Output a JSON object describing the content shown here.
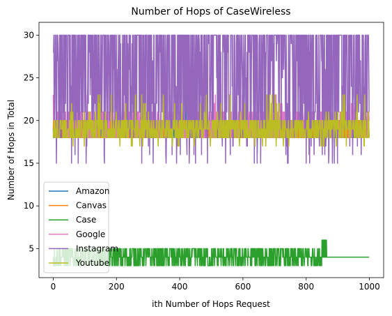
{
  "chart_data": {
    "type": "line",
    "title": "Number of Hops of CaseWireless",
    "xlabel": "ith Number of Hops Request",
    "ylabel": "Number of Hops in Total",
    "xlim": [
      -45,
      1045
    ],
    "ylim": [
      1.6,
      31.5
    ],
    "xticks": [
      0,
      200,
      400,
      600,
      800,
      1000
    ],
    "yticks": [
      5,
      10,
      15,
      20,
      25,
      30
    ],
    "grid": false,
    "legend_position": "lower-left",
    "n_points": 1000,
    "series": [
      {
        "name": "Amazon",
        "color": "#1f77b4",
        "description": "fluctuates 18-20, spike to 29-30 near i=420, dip to 16 near i=645",
        "baseline": [
          18,
          20
        ],
        "spikes": [
          {
            "x": 420,
            "y": 30
          },
          {
            "x": 422,
            "y": 29
          },
          {
            "x": 645,
            "y": 16
          }
        ]
      },
      {
        "name": "Canvas",
        "color": "#ff7f0e",
        "description": "fluctuates 18-20",
        "baseline": [
          18,
          20
        ],
        "spikes": []
      },
      {
        "name": "Case",
        "color": "#2ca02c",
        "description": "fluctuates 3-5 until ~850, 6 near 850-860, then constant 4",
        "segments": [
          {
            "x_start": 0,
            "x_end": 850,
            "min": 3,
            "max": 5
          },
          {
            "x_start": 850,
            "x_end": 865,
            "min": 4,
            "max": 6
          },
          {
            "x_start": 865,
            "x_end": 1000,
            "min": 4,
            "max": 4
          }
        ]
      },
      {
        "name": "Google",
        "color": "#e377c2",
        "description": "fluctuates 18-21 with occasional 22-23",
        "baseline": [
          18,
          21
        ],
        "spike_max": 23
      },
      {
        "name": "Instagram",
        "color": "#9467bd",
        "description": "fluctuates widely between 15 and 30",
        "baseline": [
          15,
          30
        ]
      },
      {
        "name": "Youtube",
        "color": "#bcbd22",
        "description": "fluctuates 17-23, mostly 18-20",
        "baseline": [
          17,
          23
        ]
      }
    ]
  }
}
